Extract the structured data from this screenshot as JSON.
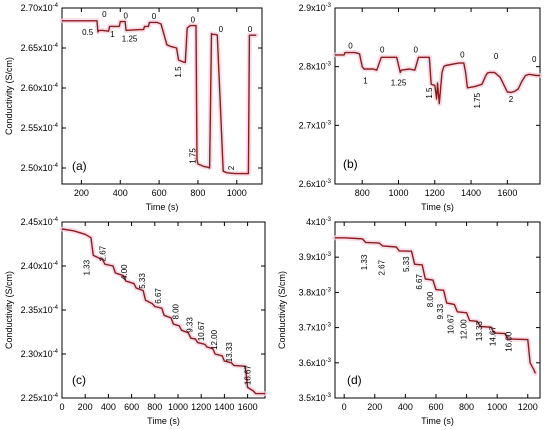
{
  "figure": {
    "colors": {
      "line": "#8b1e1a",
      "halo": "#f6cfe0",
      "axis": "#000000"
    }
  },
  "chart_data": [
    {
      "id": "a",
      "panel_label": "(a)",
      "type": "line",
      "xlabel": "Time (s)",
      "ylabel": "Conductivity (S/cm)",
      "xlim": [
        100,
        1130
      ],
      "ylim": [
        2.48,
        2.7
      ],
      "exponent": "-4",
      "x_ticks": [
        200,
        400,
        600,
        800,
        1000
      ],
      "y_ticks": [
        2.5,
        2.55,
        2.6,
        2.65,
        2.7
      ],
      "y_tick_labels": [
        "2.50x10-4",
        "2.55x10-4",
        "2.60x10-4",
        "2.65x10-4",
        "2.70x10-4"
      ],
      "series": [
        {
          "x": [
            100,
            280,
            285,
            290,
            310,
            340,
            345,
            380,
            395,
            400,
            425,
            430,
            500,
            520,
            525,
            545,
            550,
            590,
            610,
            640,
            660,
            690,
            700,
            730,
            735,
            745,
            760,
            770,
            790,
            795,
            800,
            830,
            850,
            860,
            870,
            875,
            890,
            900,
            930,
            950,
            990,
            1040,
            1050,
            1060,
            1065,
            1075,
            1080,
            1100
          ],
          "y": [
            2.684,
            2.684,
            2.67,
            2.672,
            2.672,
            2.671,
            2.677,
            2.677,
            2.677,
            2.683,
            2.683,
            2.672,
            2.673,
            2.673,
            2.677,
            2.677,
            2.682,
            2.682,
            2.68,
            2.654,
            2.652,
            2.65,
            2.635,
            2.632,
            2.632,
            2.675,
            2.678,
            2.678,
            2.678,
            2.51,
            2.505,
            2.502,
            2.501,
            2.5,
            2.668,
            2.667,
            2.667,
            2.666,
            2.496,
            2.494,
            2.493,
            2.493,
            2.493,
            2.493,
            2.666,
            2.666,
            2.666,
            2.666
          ]
        }
      ],
      "annotations": [
        {
          "text": "0.5",
          "x": 232,
          "y": 2.666
        },
        {
          "text": "0",
          "x": 318,
          "y": 2.689
        },
        {
          "text": "1",
          "x": 360,
          "y": 2.664
        },
        {
          "text": "0",
          "x": 428,
          "y": 2.687
        },
        {
          "text": "1.25",
          "x": 448,
          "y": 2.658
        },
        {
          "text": "0",
          "x": 574,
          "y": 2.686
        },
        {
          "text": "1.5",
          "x": 712,
          "y": 2.62,
          "rotate": true
        },
        {
          "text": "0",
          "x": 774,
          "y": 2.682
        },
        {
          "text": "1.75",
          "x": 788,
          "y": 2.515,
          "rotate": true
        },
        {
          "text": "0",
          "x": 918,
          "y": 2.67
        },
        {
          "text": "2",
          "x": 985,
          "y": 2.5,
          "rotate": true
        },
        {
          "text": "0",
          "x": 1068,
          "y": 2.67
        }
      ]
    },
    {
      "id": "b",
      "panel_label": "(b)",
      "type": "line",
      "xlabel": "Time (s)",
      "ylabel": "",
      "xlim": [
        650,
        1780
      ],
      "ylim": [
        2.6,
        2.9
      ],
      "exponent": "-3",
      "x_ticks": [
        800,
        1000,
        1200,
        1400,
        1600
      ],
      "y_ticks": [
        2.6,
        2.7,
        2.8,
        2.9
      ],
      "y_tick_labels": [
        "2.6x10-3",
        "2.7x10-3",
        "2.8x10-3",
        "2.9x10-3"
      ],
      "series": [
        {
          "x": [
            650,
            700,
            705,
            720,
            760,
            785,
            800,
            810,
            860,
            880,
            905,
            940,
            960,
            990,
            1010,
            1015,
            1060,
            1090,
            1110,
            1150,
            1170,
            1180,
            1200,
            1210,
            1215,
            1225,
            1240,
            1250,
            1260,
            1330,
            1360,
            1370,
            1380,
            1420,
            1440,
            1460,
            1480,
            1490,
            1500,
            1530,
            1560,
            1600,
            1620,
            1640,
            1660,
            1680,
            1700,
            1720,
            1760,
            1780
          ],
          "y": [
            2.82,
            2.82,
            2.824,
            2.824,
            2.824,
            2.822,
            2.8,
            2.796,
            2.796,
            2.794,
            2.816,
            2.816,
            2.816,
            2.816,
            2.79,
            2.794,
            2.796,
            2.794,
            2.816,
            2.816,
            2.816,
            2.77,
            2.768,
            2.745,
            2.772,
            2.737,
            2.79,
            2.8,
            2.802,
            2.806,
            2.806,
            2.79,
            2.764,
            2.766,
            2.768,
            2.77,
            2.784,
            2.789,
            2.79,
            2.79,
            2.782,
            2.757,
            2.756,
            2.758,
            2.762,
            2.775,
            2.785,
            2.787,
            2.785,
            2.785
          ]
        }
      ],
      "annotations": [
        {
          "text": "0",
          "x": 735,
          "y": 2.831
        },
        {
          "text": "1",
          "x": 818,
          "y": 2.771
        },
        {
          "text": "0",
          "x": 910,
          "y": 2.824
        },
        {
          "text": "1.25",
          "x": 1000,
          "y": 2.768
        },
        {
          "text": "0",
          "x": 1095,
          "y": 2.824
        },
        {
          "text": "1.5",
          "x": 1185,
          "y": 2.755,
          "rotate": true
        },
        {
          "text": "0",
          "x": 1352,
          "y": 2.816
        },
        {
          "text": "1.75",
          "x": 1450,
          "y": 2.742,
          "rotate": true
        },
        {
          "text": "0",
          "x": 1538,
          "y": 2.813
        },
        {
          "text": "2",
          "x": 1620,
          "y": 2.74
        },
        {
          "text": "0",
          "x": 1748,
          "y": 2.808
        }
      ]
    },
    {
      "id": "c",
      "panel_label": "(c)",
      "type": "line",
      "xlabel": "Time (s)",
      "ylabel": "Conductivity (S/cm)",
      "xlim": [
        0,
        1750
      ],
      "ylim": [
        2.25,
        2.45
      ],
      "exponent": "-4",
      "x_ticks": [
        0,
        200,
        400,
        600,
        800,
        1000,
        1200,
        1400,
        1600
      ],
      "y_ticks": [
        2.25,
        2.3,
        2.35,
        2.4,
        2.45
      ],
      "y_tick_labels": [
        "2.25x10-4",
        "2.30x10-4",
        "2.35x10-4",
        "2.40x10-4",
        "2.45x10-4"
      ],
      "series": [
        {
          "x": [
            0,
            100,
            200,
            250,
            270,
            350,
            370,
            440,
            460,
            530,
            550,
            620,
            640,
            700,
            720,
            780,
            800,
            860,
            880,
            940,
            960,
            1010,
            1030,
            1090,
            1110,
            1150,
            1170,
            1230,
            1250,
            1300,
            1320,
            1380,
            1400,
            1460,
            1480,
            1580,
            1600,
            1650,
            1670,
            1750
          ],
          "y": [
            2.442,
            2.44,
            2.436,
            2.432,
            2.412,
            2.407,
            2.402,
            2.4,
            2.392,
            2.389,
            2.383,
            2.38,
            2.375,
            2.372,
            2.361,
            2.357,
            2.354,
            2.352,
            2.344,
            2.341,
            2.334,
            2.332,
            2.327,
            2.324,
            2.318,
            2.317,
            2.313,
            2.311,
            2.308,
            2.306,
            2.3,
            2.298,
            2.292,
            2.29,
            2.287,
            2.286,
            2.262,
            2.258,
            2.255,
            2.255
          ]
        }
      ],
      "annotations": [
        {
          "text": "1.33",
          "x": 235,
          "y": 2.398,
          "rotate": true
        },
        {
          "text": "2.67",
          "x": 375,
          "y": 2.414,
          "rotate": true
        },
        {
          "text": "4.00",
          "x": 560,
          "y": 2.393,
          "rotate": true
        },
        {
          "text": "5.33",
          "x": 715,
          "y": 2.383,
          "rotate": true
        },
        {
          "text": "6.67",
          "x": 855,
          "y": 2.366,
          "rotate": true
        },
        {
          "text": "8.00",
          "x": 1005,
          "y": 2.348,
          "rotate": true
        },
        {
          "text": "9.33",
          "x": 1125,
          "y": 2.333,
          "rotate": true
        },
        {
          "text": "10.67",
          "x": 1225,
          "y": 2.326,
          "rotate": true
        },
        {
          "text": "12.00",
          "x": 1335,
          "y": 2.316,
          "rotate": true
        },
        {
          "text": "13.33",
          "x": 1465,
          "y": 2.302,
          "rotate": true
        },
        {
          "text": "16.67",
          "x": 1625,
          "y": 2.276,
          "rotate": true
        }
      ]
    },
    {
      "id": "d",
      "panel_label": "(d)",
      "type": "line",
      "xlabel": "Time (s)",
      "ylabel": "Conductivity (S/cm)",
      "xlim": [
        -60,
        1280
      ],
      "ylim": [
        3.5,
        4.0
      ],
      "exponent": "-3",
      "x_ticks": [
        0,
        200,
        400,
        600,
        800,
        1000,
        1200
      ],
      "y_ticks": [
        3.5,
        3.6,
        3.7,
        3.8,
        3.9,
        4.0
      ],
      "y_tick_labels": [
        "3.5x10-3",
        "3.6x10-3",
        "3.7x10-3",
        "3.8x10-3",
        "3.9x10-3",
        "4x10-3"
      ],
      "series": [
        {
          "x": [
            -60,
            0,
            80,
            120,
            140,
            230,
            250,
            340,
            360,
            440,
            460,
            510,
            530,
            580,
            600,
            650,
            670,
            720,
            740,
            800,
            820,
            870,
            890,
            960,
            980,
            1050,
            1070,
            1200,
            1215,
            1240,
            1250
          ],
          "y": [
            3.955,
            3.955,
            3.953,
            3.952,
            3.942,
            3.94,
            3.932,
            3.929,
            3.918,
            3.917,
            3.88,
            3.878,
            3.838,
            3.835,
            3.808,
            3.806,
            3.77,
            3.766,
            3.745,
            3.742,
            3.72,
            3.718,
            3.703,
            3.701,
            3.685,
            3.683,
            3.668,
            3.666,
            3.6,
            3.58,
            3.57
          ]
        }
      ],
      "annotations": [
        {
          "text": "1.33",
          "x": 150,
          "y": 3.885,
          "rotate": true
        },
        {
          "text": "2.67",
          "x": 265,
          "y": 3.87,
          "rotate": true
        },
        {
          "text": "5.33",
          "x": 425,
          "y": 3.88,
          "rotate": true
        },
        {
          "text": "6.67",
          "x": 510,
          "y": 3.83,
          "rotate": true
        },
        {
          "text": "8.00",
          "x": 580,
          "y": 3.78,
          "rotate": true
        },
        {
          "text": "9.33",
          "x": 645,
          "y": 3.745,
          "rotate": true
        },
        {
          "text": "10.67",
          "x": 715,
          "y": 3.71,
          "rotate": true
        },
        {
          "text": "12.00",
          "x": 800,
          "y": 3.695,
          "rotate": true
        },
        {
          "text": "13.33",
          "x": 900,
          "y": 3.69,
          "rotate": true
        },
        {
          "text": "14.67",
          "x": 990,
          "y": 3.676,
          "rotate": true
        },
        {
          "text": "16.00",
          "x": 1095,
          "y": 3.66,
          "rotate": true
        }
      ]
    }
  ]
}
